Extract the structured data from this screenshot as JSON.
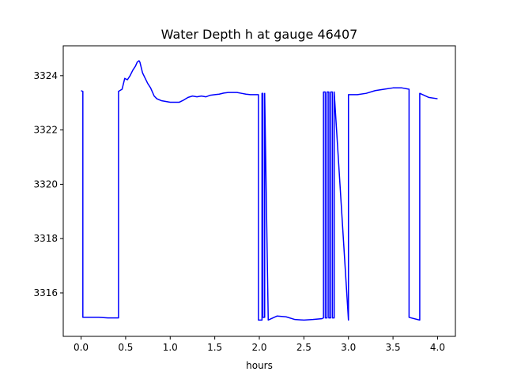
{
  "chart_data": {
    "type": "line",
    "title": "Water Depth h at gauge 46407",
    "xlabel": "hours",
    "ylabel": "",
    "xlim": [
      -0.2,
      4.2
    ],
    "ylim": [
      3314.4,
      3325.1
    ],
    "xticks": [
      0.0,
      0.5,
      1.0,
      1.5,
      2.0,
      2.5,
      3.0,
      3.5,
      4.0
    ],
    "xtick_labels": [
      "0.0",
      "0.5",
      "1.0",
      "1.5",
      "2.0",
      "2.5",
      "3.0",
      "3.5",
      "4.0"
    ],
    "yticks": [
      3316,
      3318,
      3320,
      3322,
      3324
    ],
    "ytick_labels": [
      "3316",
      "3318",
      "3320",
      "3322",
      "3324"
    ],
    "grid": false,
    "colors": {
      "line": "#0000ff",
      "axes": "#000000",
      "background": "#ffffff"
    },
    "series": [
      {
        "name": "",
        "x": [
          0.0,
          0.02,
          0.02,
          0.1,
          0.2,
          0.3,
          0.42,
          0.42,
          0.46,
          0.49,
          0.52,
          0.55,
          0.58,
          0.61,
          0.63,
          0.65,
          0.66,
          0.69,
          0.72,
          0.75,
          0.78,
          0.8,
          0.82,
          0.85,
          0.9,
          0.95,
          1.0,
          1.05,
          1.1,
          1.15,
          1.2,
          1.25,
          1.3,
          1.35,
          1.4,
          1.45,
          1.5,
          1.55,
          1.6,
          1.65,
          1.7,
          1.75,
          1.8,
          1.85,
          1.9,
          1.95,
          1.99,
          1.99,
          2.03,
          2.03,
          2.04,
          2.04,
          2.06,
          2.06,
          2.1,
          2.2,
          2.3,
          2.4,
          2.5,
          2.6,
          2.7,
          2.72,
          2.72,
          2.74,
          2.74,
          2.76,
          2.76,
          2.78,
          2.78,
          2.8,
          2.8,
          2.82,
          2.82,
          2.84,
          2.84,
          3.0,
          3.0,
          3.1,
          3.2,
          3.3,
          3.4,
          3.5,
          3.6,
          3.68,
          3.68,
          3.8,
          3.8,
          3.9,
          4.0
        ],
        "y": [
          3323.45,
          3323.42,
          3315.1,
          3315.1,
          3315.1,
          3315.08,
          3315.08,
          3323.42,
          3323.5,
          3323.9,
          3323.85,
          3324.0,
          3324.2,
          3324.35,
          3324.5,
          3324.55,
          3324.5,
          3324.1,
          3323.9,
          3323.7,
          3323.55,
          3323.4,
          3323.25,
          3323.15,
          3323.08,
          3323.05,
          3323.02,
          3323.02,
          3323.02,
          3323.1,
          3323.2,
          3323.25,
          3323.22,
          3323.25,
          3323.22,
          3323.28,
          3323.3,
          3323.32,
          3323.36,
          3323.38,
          3323.38,
          3323.38,
          3323.35,
          3323.32,
          3323.3,
          3323.3,
          3323.3,
          3315.0,
          3315.0,
          3323.35,
          3323.35,
          3315.1,
          3315.1,
          3323.35,
          3315.0,
          3315.15,
          3315.12,
          3315.02,
          3315.0,
          3315.02,
          3315.05,
          3315.08,
          3323.4,
          3323.4,
          3315.08,
          3315.08,
          3323.4,
          3323.4,
          3315.08,
          3315.08,
          3323.4,
          3323.4,
          3315.08,
          3315.08,
          3323.4,
          3315.0,
          3323.3,
          3323.3,
          3323.35,
          3323.45,
          3323.5,
          3323.55,
          3323.55,
          3323.5,
          3315.1,
          3315.0,
          3323.35,
          3323.2,
          3323.15
        ]
      }
    ]
  }
}
